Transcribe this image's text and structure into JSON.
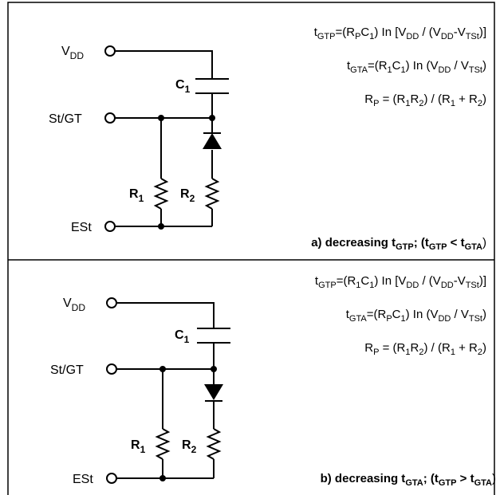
{
  "colors": {
    "line": "#000000",
    "background": "#ffffff"
  },
  "panel_a": {
    "pins": {
      "vdd_main": "V",
      "vdd_sub": "DD",
      "stgt": "St/GT",
      "est": "ESt"
    },
    "components": {
      "c1_main": "C",
      "c1_sub": "1",
      "r1_main": "R",
      "r1_sub": "1",
      "r2_main": "R",
      "r2_sub": "2"
    },
    "equations": {
      "eq1": {
        "t": "t",
        "t_sub": "GTP",
        "p1": "=(R",
        "p1_sub": "P",
        "p2": "C",
        "p2_sub": "1",
        "p3": ") In [V",
        "p3_sub": "DD",
        "p4": " / (V",
        "p4_sub": "DD",
        "p5": "-V",
        "p5_sub": "TSt",
        "p6": ")]"
      },
      "eq2": {
        "t": "t",
        "t_sub": "GTA",
        "p1": "=(R",
        "p1_sub": "1",
        "p2": "C",
        "p2_sub": "1",
        "p3": ") In (V",
        "p3_sub": "DD",
        "p4": " / V",
        "p4_sub": "TSt",
        "p5": ")"
      },
      "eq3": {
        "r": "R",
        "r_sub": "P",
        "p1": " = (R",
        "p1_sub": "1",
        "p2": "R",
        "p2_sub": "2",
        "p3": ") / (R",
        "p3_sub": "1",
        "p4": " + R",
        "p4_sub": "2",
        "p5": ")"
      }
    },
    "caption": {
      "prefix": "a)  decreasing t",
      "sub1": "GTP",
      "mid": "; (t",
      "sub2": "GTP",
      "op": " < t",
      "sub3": "GTA",
      "end": ")"
    }
  },
  "panel_b": {
    "pins": {
      "vdd_main": "V",
      "vdd_sub": "DD",
      "stgt": "St/GT",
      "est": "ESt"
    },
    "components": {
      "c1_main": "C",
      "c1_sub": "1",
      "r1_main": "R",
      "r1_sub": "1",
      "r2_main": "R",
      "r2_sub": "2"
    },
    "equations": {
      "eq1": {
        "t": "t",
        "t_sub": "GTP",
        "p1": "=(R",
        "p1_sub": "1",
        "p2": "C",
        "p2_sub": "1",
        "p3": ") In [V",
        "p3_sub": "DD",
        "p4": " / (V",
        "p4_sub": "DD",
        "p5": "-V",
        "p5_sub": "TSt",
        "p6": ")]"
      },
      "eq2": {
        "t": "t",
        "t_sub": "GTA",
        "p1": "=(R",
        "p1_sub": "P",
        "p2": "C",
        "p2_sub": "1",
        "p3": ") In (V",
        "p3_sub": "DD",
        "p4": " / V",
        "p4_sub": "TSt",
        "p5": ")"
      },
      "eq3": {
        "r": "R",
        "r_sub": "P",
        "p1": " = (R",
        "p1_sub": "1",
        "p2": "R",
        "p2_sub": "2",
        "p3": ") / (R",
        "p3_sub": "1",
        "p4": " + R",
        "p4_sub": "2",
        "p5": ")"
      }
    },
    "caption": {
      "prefix": "b)  decreasing t",
      "sub1": "GTA",
      "mid": "; (t",
      "sub2": "GTP",
      "op": " > t",
      "sub3": "GTA",
      "end": ")"
    }
  }
}
